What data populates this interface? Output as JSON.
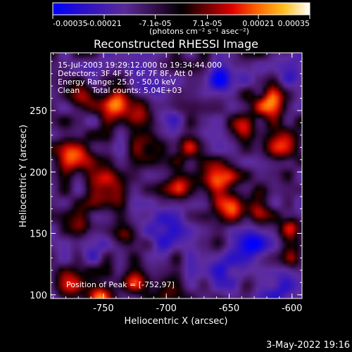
{
  "chart_data": {
    "type": "heatmap",
    "title": "Reconstructed RHESSI Image",
    "xlabel": "Heliocentric X (arcsec)",
    "ylabel": "Heliocentric Y (arcsec)",
    "xlim": [
      -792,
      -592
    ],
    "ylim": [
      97,
      297
    ],
    "x_ticks": [
      "-750",
      "-700",
      "-650",
      "-600"
    ],
    "x_tick_values": [
      -750,
      -700,
      -650,
      -600
    ],
    "y_ticks": [
      "100",
      "150",
      "200",
      "250"
    ],
    "y_tick_values": [
      100,
      150,
      200,
      250
    ],
    "colorbar": {
      "range": [
        -0.00035,
        0.00035
      ],
      "tick_labels": [
        "-0.00035",
        "-0.00021",
        "-7.1e-05",
        "7.1e-05",
        "0.00021",
        "0.00035"
      ],
      "unit_label": "(photons cm⁻² s⁻¹ asec⁻²)"
    },
    "annotations": [
      "15-Jul-2003 19:29:12.000 to 19:34:44.000",
      "Detectors: 3F 4F 5F 6F 7F 8F, Att 0",
      "Energy Range: 25.0 - 50.0 keV",
      "Clean     Total counts: 5.04E+03"
    ],
    "peak_label": "Position of Peak = [-752,97]",
    "peak_position": [
      -752,
      97
    ],
    "colormap": [
      "#0000ff",
      "#3c0078",
      "#6a2aa0",
      "#000000",
      "#8c0000",
      "#ff1a00",
      "#ff8c00",
      "#ffe040",
      "#ffffff"
    ],
    "hot_regions": [
      {
        "x": -772,
        "y": 212,
        "sigma": 9,
        "amp": 0.00028
      },
      {
        "x": -742,
        "y": 255,
        "sigma": 8,
        "amp": 0.0003
      },
      {
        "x": -722,
        "y": 252,
        "sigma": 7,
        "amp": 0.00024
      },
      {
        "x": -768,
        "y": 262,
        "sigma": 7,
        "amp": 0.00022
      },
      {
        "x": -748,
        "y": 187,
        "sigma": 10,
        "amp": 0.00021
      },
      {
        "x": -715,
        "y": 220,
        "sigma": 8,
        "amp": 0.00018
      },
      {
        "x": -683,
        "y": 222,
        "sigma": 9,
        "amp": 0.0002
      },
      {
        "x": -688,
        "y": 188,
        "sigma": 8,
        "amp": 0.00022
      },
      {
        "x": -660,
        "y": 194,
        "sigma": 10,
        "amp": 0.00032
      },
      {
        "x": -648,
        "y": 170,
        "sigma": 8,
        "amp": 0.00026
      },
      {
        "x": -618,
        "y": 256,
        "sigma": 9,
        "amp": 0.00027
      },
      {
        "x": -608,
        "y": 222,
        "sigma": 10,
        "amp": 0.00025
      },
      {
        "x": -628,
        "y": 172,
        "sigma": 8,
        "amp": 0.00021
      },
      {
        "x": -600,
        "y": 155,
        "sigma": 7,
        "amp": 0.0002
      },
      {
        "x": -778,
        "y": 108,
        "sigma": 8,
        "amp": 0.00024
      },
      {
        "x": -752,
        "y": 97,
        "sigma": 7,
        "amp": 0.00035
      },
      {
        "x": -725,
        "y": 113,
        "sigma": 8,
        "amp": 0.0002
      },
      {
        "x": -733,
        "y": 148,
        "sigma": 7,
        "amp": 0.00017
      },
      {
        "x": -768,
        "y": 162,
        "sigma": 7,
        "amp": 0.00016
      },
      {
        "x": -640,
        "y": 236,
        "sigma": 7,
        "amp": 0.00019
      },
      {
        "x": -694,
        "y": 106,
        "sigma": 7,
        "amp": 0.00014
      },
      {
        "x": -597,
        "y": 130,
        "sigma": 6,
        "amp": 0.00016
      }
    ],
    "cold_regions": [
      {
        "x": -715,
        "y": 270,
        "sigma": 10,
        "amp": -0.0002
      },
      {
        "x": -655,
        "y": 276,
        "sigma": 9,
        "amp": -0.00022
      },
      {
        "x": -632,
        "y": 142,
        "sigma": 9,
        "amp": -0.00024
      },
      {
        "x": -700,
        "y": 150,
        "sigma": 11,
        "amp": -0.00016
      },
      {
        "x": -650,
        "y": 122,
        "sigma": 10,
        "amp": -0.00015
      },
      {
        "x": -610,
        "y": 105,
        "sigma": 9,
        "amp": -0.00018
      },
      {
        "x": -758,
        "y": 140,
        "sigma": 8,
        "amp": -0.00012
      },
      {
        "x": -700,
        "y": 245,
        "sigma": 8,
        "amp": -0.00013
      },
      {
        "x": -600,
        "y": 285,
        "sigma": 9,
        "amp": -0.00016
      }
    ],
    "grid": false
  },
  "footer": {
    "date_stamp": "3-May-2022 19:16"
  }
}
